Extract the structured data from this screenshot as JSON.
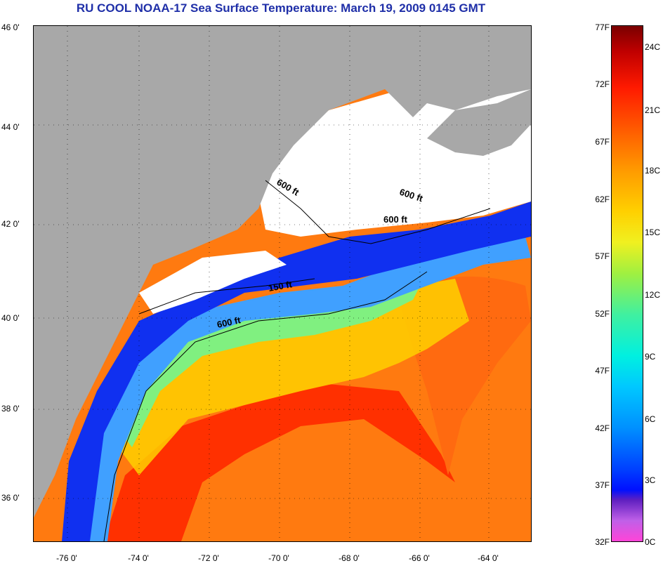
{
  "title": "RU COOL  NOAA-17  Sea Surface Temperature:  March 19, 2009 0145 GMT",
  "map": {
    "lat_labels": [
      "46 0'",
      "44 0'",
      "42 0'",
      "40 0'",
      "38 0'",
      "36 0'"
    ],
    "lon_labels": [
      "-76 0'",
      "-74 0'",
      "-72 0'",
      "-70 0'",
      "-68 0'",
      "-66 0'",
      "-64 0'"
    ],
    "contour_labels": [
      "600 ft",
      "600 ft",
      "600 ft",
      "150 ft",
      "600 ft"
    ],
    "colors": {
      "land": "#a8a8a8",
      "cloud": "#ffffff",
      "cold_water": "#1030f0",
      "cool_water": "#40a0ff",
      "mid_water": "#80f080",
      "warm_water": "#ffd000",
      "gulf_stream": "#ff3000",
      "offshore": "#ff7a10"
    }
  },
  "colorbar": {
    "fahrenheit_labels": [
      "77F",
      "72F",
      "67F",
      "62F",
      "57F",
      "52F",
      "47F",
      "42F",
      "37F",
      "32F"
    ],
    "celsius_labels": [
      "24C",
      "21C",
      "18C",
      "15C",
      "12C",
      "9C",
      "6C",
      "3C",
      "0C"
    ]
  }
}
